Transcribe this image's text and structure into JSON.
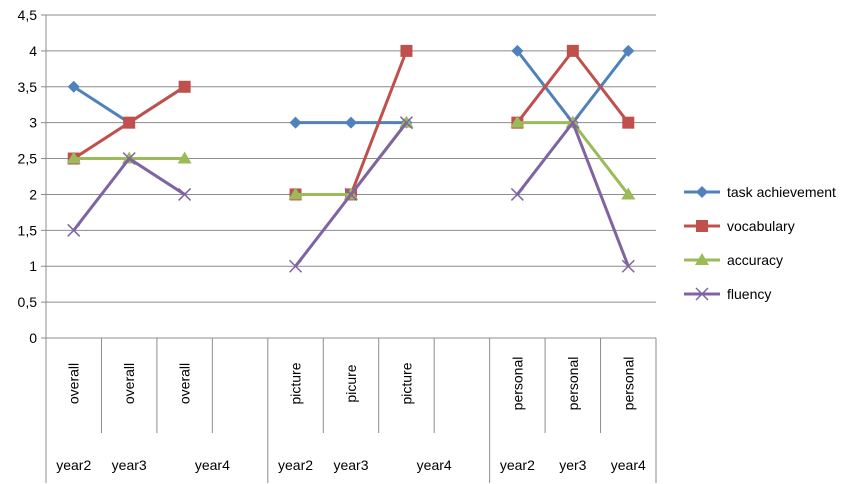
{
  "chart_data": {
    "type": "line",
    "ylim": [
      0,
      4.5
    ],
    "y_ticks": [
      "0",
      "0,5",
      "1",
      "1,5",
      "2",
      "2,5",
      "3",
      "3,5",
      "4",
      "4,5"
    ],
    "grid": "horizontal",
    "legend_position": "right",
    "categories": [
      {
        "task": "overall",
        "year": "year2"
      },
      {
        "task": "overall",
        "year": "year3"
      },
      {
        "task": "overall",
        "year": "year4"
      },
      {
        "task": "",
        "year": ""
      },
      {
        "task": "picture",
        "year": "year2"
      },
      {
        "task": "picure",
        "year": "year3"
      },
      {
        "task": "picture",
        "year": "year4"
      },
      {
        "task": "",
        "year": ""
      },
      {
        "task": "personal",
        "year": "year2"
      },
      {
        "task": "personal",
        "year": "yer3"
      },
      {
        "task": "personal",
        "year": "year4"
      }
    ],
    "series": [
      {
        "name": "task achievement",
        "color": "#4F81BD",
        "marker": "diamond",
        "values": [
          3.5,
          3,
          3.5,
          null,
          3,
          3,
          3,
          null,
          4,
          3,
          4
        ]
      },
      {
        "name": "vocabulary",
        "color": "#C0504D",
        "marker": "square",
        "values": [
          2.5,
          3,
          3.5,
          null,
          2,
          2,
          4,
          null,
          3,
          4,
          3
        ]
      },
      {
        "name": "accuracy",
        "color": "#9BBB59",
        "marker": "triangle",
        "values": [
          2.5,
          2.5,
          2.5,
          null,
          2,
          2,
          3,
          null,
          3,
          3,
          2
        ]
      },
      {
        "name": "fluency",
        "color": "#8064A2",
        "marker": "x",
        "values": [
          1.5,
          2.5,
          2,
          null,
          1,
          2,
          3,
          null,
          2,
          3,
          1
        ]
      }
    ]
  }
}
